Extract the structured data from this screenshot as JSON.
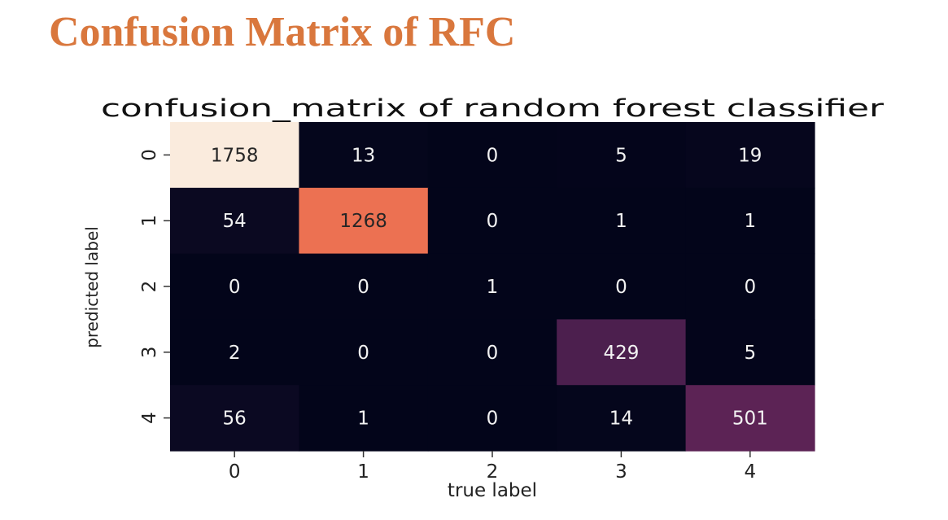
{
  "slide": {
    "title": "Confusion Matrix of RFC",
    "title_color": "#D9773D"
  },
  "chart_data": {
    "type": "heatmap",
    "title": "confusion_matrix of random forest classifier",
    "xlabel": "true label",
    "ylabel": "predicted label",
    "x_ticks": [
      "0",
      "1",
      "2",
      "3",
      "4"
    ],
    "y_ticks": [
      "0",
      "1",
      "2",
      "3",
      "4"
    ],
    "matrix": [
      [
        1758,
        13,
        0,
        5,
        19
      ],
      [
        54,
        1268,
        0,
        1,
        1
      ],
      [
        0,
        0,
        1,
        0,
        0
      ],
      [
        2,
        0,
        0,
        429,
        5
      ],
      [
        56,
        1,
        0,
        14,
        501
      ]
    ],
    "colormap": "rocket",
    "vmin": 0,
    "vmax": 1758,
    "colorbar": false
  }
}
